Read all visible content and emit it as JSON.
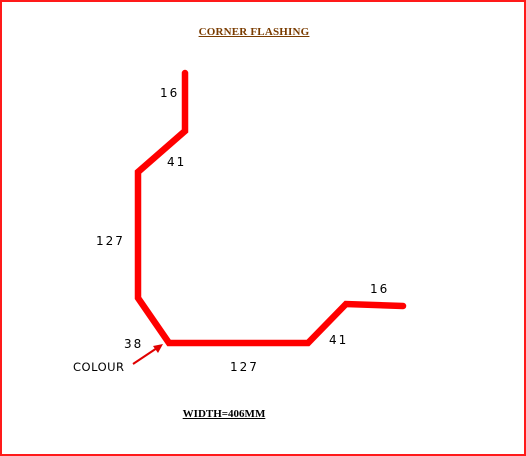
{
  "title": "CORNER  FLASHING",
  "footer": "WIDTH=406MM",
  "colors": {
    "border": "#ff1a1a",
    "profile": "#ff0000",
    "title": "#7a3c00",
    "arrow": "#e00000"
  },
  "dimensions": {
    "top_return": "16",
    "top_bend": "41",
    "vertical_face": "127",
    "bottom_bend": "38",
    "bottom_face": "127",
    "right_bend": "41",
    "right_return": "16"
  },
  "callout": {
    "label": "COLOUR"
  }
}
